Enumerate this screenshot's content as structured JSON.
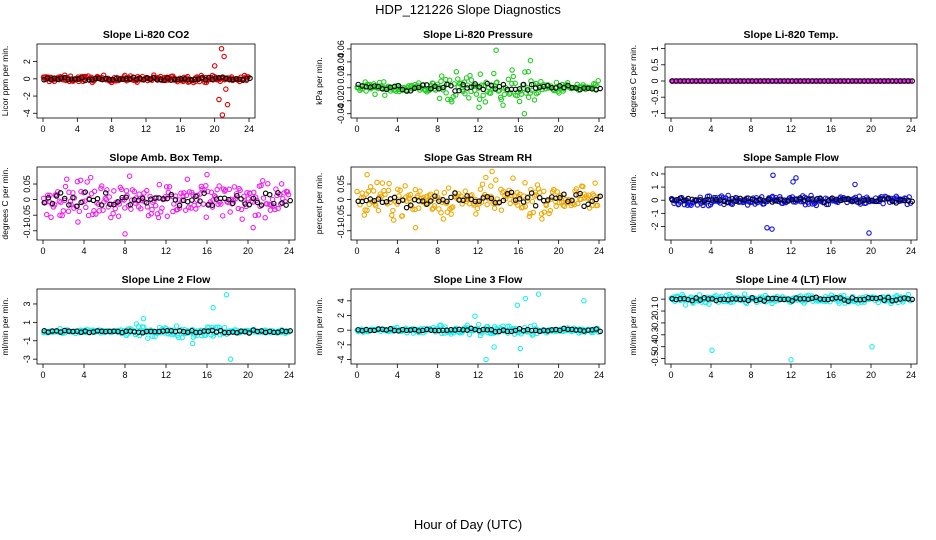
{
  "figure": {
    "title": "HDP_121226  Slope Diagnostics",
    "xlabel": "Hour of Day (UTC)"
  },
  "colors": {
    "red": "#e00000",
    "green": "#22cc22",
    "magenta": "#ee22ee",
    "orange": "#f0a800",
    "blue": "#1010dd",
    "cyan": "#22eeee",
    "black": "#000000"
  },
  "chart_data": [
    {
      "type": "scatter",
      "title": "Slope Li-820 CO2",
      "ylabel": "Licor ppm per min.",
      "xlim": [
        0,
        24
      ],
      "xticks": [
        0,
        4,
        8,
        12,
        16,
        20,
        24
      ],
      "ylim": [
        -4.2,
        3.7
      ],
      "yticks": [
        -4,
        -2,
        0,
        2
      ],
      "color": "red",
      "spread": 0.35,
      "outliers": [
        [
          20.0,
          1.5
        ],
        [
          20.5,
          -2.4
        ],
        [
          20.8,
          3.5
        ],
        [
          21.1,
          2.6
        ],
        [
          21.3,
          -1.2
        ],
        [
          21.5,
          -3.0
        ],
        [
          20.9,
          -4.2
        ]
      ]
    },
    {
      "type": "scatter",
      "title": "Slope Li-820 Pressure",
      "ylabel": "kPa per min.",
      "xlim": [
        0,
        24
      ],
      "xticks": [
        0,
        4,
        8,
        12,
        16,
        20,
        24
      ],
      "ylim": [
        -0.042,
        0.063
      ],
      "yticks": [
        -0.04,
        -0.02,
        0.0,
        0.02,
        0.04,
        0.06
      ],
      "color": "green",
      "spread": 0.014,
      "outliers": [
        [
          13.8,
          0.058
        ],
        [
          17.2,
          0.042
        ],
        [
          12.1,
          -0.03
        ],
        [
          16.6,
          -0.04
        ]
      ]
    },
    {
      "type": "scatter",
      "title": "Slope Li-820 Temp.",
      "ylabel": "degrees C per min.",
      "xlim": [
        0,
        24
      ],
      "xticks": [
        0,
        4,
        8,
        12,
        16,
        20,
        24
      ],
      "ylim": [
        -1.05,
        1.05
      ],
      "yticks": [
        -1.0,
        -0.5,
        0.0,
        0.5,
        1.0
      ],
      "color": "magenta",
      "spread": 0.0,
      "outliers": []
    },
    {
      "type": "scatter",
      "title": "Slope Amb. Box Temp.",
      "ylabel": "degrees C per min.",
      "xlim": [
        0,
        24
      ],
      "xticks": [
        0,
        4,
        8,
        12,
        16,
        20,
        24
      ],
      "ylim": [
        -0.12,
        0.095
      ],
      "yticks": [
        -0.1,
        -0.05,
        0.0,
        0.05
      ],
      "color": "magenta",
      "spread": 0.055,
      "outliers": [
        [
          8.0,
          -0.11
        ],
        [
          16.0,
          0.08
        ],
        [
          20.5,
          -0.09
        ]
      ]
    },
    {
      "type": "scatter",
      "title": "Slope Gas Stream RH",
      "ylabel": "percent per min.",
      "xlim": [
        0,
        24
      ],
      "xticks": [
        0,
        4,
        8,
        12,
        16,
        20,
        24
      ],
      "ylim": [
        -0.12,
        0.095
      ],
      "yticks": [
        -0.1,
        -0.05,
        0.0,
        0.05
      ],
      "color": "orange",
      "spread": 0.05,
      "outliers": [
        [
          1.0,
          0.08
        ],
        [
          13.4,
          0.09
        ],
        [
          5.8,
          -0.09
        ]
      ]
    },
    {
      "type": "scatter",
      "title": "Slope Sample Flow",
      "ylabel": "ml/min per min.",
      "xlim": [
        0,
        24
      ],
      "xticks": [
        0,
        4,
        8,
        12,
        16,
        20,
        24
      ],
      "ylim": [
        -2.8,
        2.3
      ],
      "yticks": [
        -2,
        -1,
        0,
        1,
        2
      ],
      "color": "blue",
      "spread": 0.35,
      "outliers": [
        [
          9.6,
          -2.1
        ],
        [
          10.1,
          -2.2
        ],
        [
          10.2,
          1.9
        ],
        [
          12.5,
          1.7
        ],
        [
          12.2,
          1.4
        ],
        [
          19.8,
          -2.5
        ],
        [
          18.4,
          1.2
        ]
      ]
    },
    {
      "type": "scatter",
      "title": "Slope Line 2 Flow",
      "ylabel": "ml/min per min.",
      "xlim": [
        0,
        24
      ],
      "xticks": [
        0,
        4,
        8,
        12,
        16,
        20,
        24
      ],
      "ylim": [
        -3.2,
        4.3
      ],
      "yticks": [
        -3,
        -1,
        1,
        3
      ],
      "color": "cyan",
      "spread": 0.35,
      "outliers": [
        [
          17.9,
          4.0
        ],
        [
          18.3,
          -3.0
        ],
        [
          16.6,
          2.6
        ],
        [
          14.6,
          -1.3
        ],
        [
          9.8,
          1.4
        ]
      ]
    },
    {
      "type": "scatter",
      "title": "Slope Line 3 Flow",
      "ylabel": "ml/min per min.",
      "xlim": [
        0,
        24
      ],
      "xticks": [
        0,
        4,
        8,
        12,
        16,
        20,
        24
      ],
      "ylim": [
        -4.2,
        5.2
      ],
      "yticks": [
        -4,
        -2,
        0,
        2,
        4
      ],
      "color": "cyan",
      "spread": 0.5,
      "outliers": [
        [
          12.8,
          -4.0
        ],
        [
          13.6,
          -2.3
        ],
        [
          16.2,
          -2.5
        ],
        [
          18.0,
          4.9
        ],
        [
          16.7,
          4.3
        ],
        [
          15.9,
          3.4
        ],
        [
          22.5,
          4.0
        ],
        [
          11.7,
          1.9
        ]
      ]
    },
    {
      "type": "scatter",
      "title": "Slope Line 4 (LT) Flow",
      "ylabel": "ml/min per min.",
      "xlim": [
        0,
        24
      ],
      "xticks": [
        0,
        4,
        8,
        12,
        16,
        20,
        24
      ],
      "ylim": [
        -0.52,
        0.06
      ],
      "yticks": [
        -0.5,
        -0.4,
        -0.3,
        -0.2,
        -0.1,
        0.0
      ],
      "color": "cyan",
      "spread": 0.035,
      "outliers": [
        [
          4.1,
          -0.43
        ],
        [
          12.0,
          -0.51
        ],
        [
          20.1,
          -0.4
        ]
      ]
    }
  ]
}
